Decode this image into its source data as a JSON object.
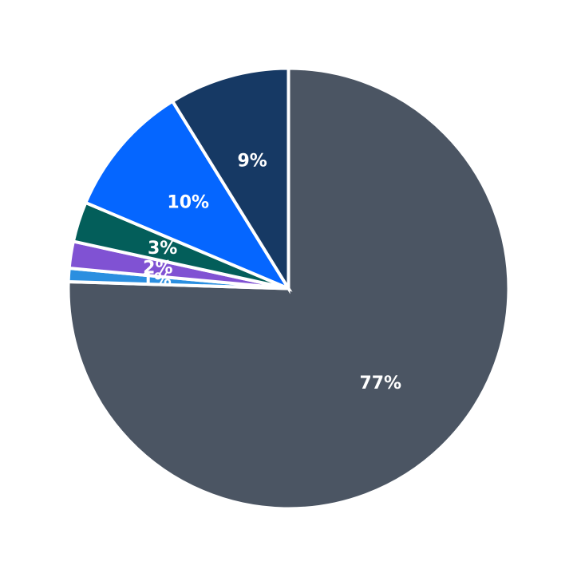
{
  "chart_data": {
    "type": "pie",
    "start": "12 o'clock",
    "direction": "clockwise",
    "legend": "none",
    "slices": [
      {
        "value": 77,
        "label": "77%",
        "color": "#4b5563"
      },
      {
        "value": 1,
        "label": "1%",
        "color": "#2b8fe0"
      },
      {
        "value": 2,
        "label": "2%",
        "color": "#8052d3"
      },
      {
        "value": 3,
        "label": "3%",
        "color": "#035e5a"
      },
      {
        "value": 10,
        "label": "10%",
        "color": "#0566ff"
      },
      {
        "value": 9,
        "label": "9%",
        "color": "#163964"
      }
    ]
  }
}
